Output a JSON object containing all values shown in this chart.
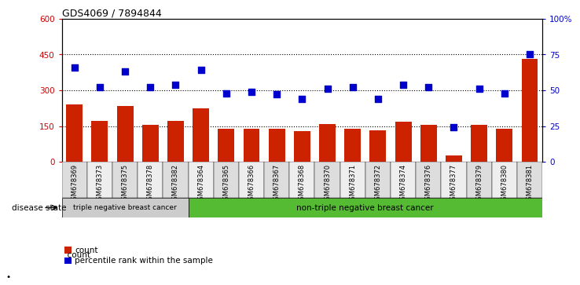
{
  "title": "GDS4069 / 7894844",
  "samples": [
    "GSM678369",
    "GSM678373",
    "GSM678375",
    "GSM678378",
    "GSM678382",
    "GSM678364",
    "GSM678365",
    "GSM678366",
    "GSM678367",
    "GSM678368",
    "GSM678370",
    "GSM678371",
    "GSM678372",
    "GSM678374",
    "GSM678376",
    "GSM678377",
    "GSM678379",
    "GSM678380",
    "GSM678381"
  ],
  "counts": [
    240,
    170,
    235,
    155,
    170,
    225,
    140,
    140,
    138,
    128,
    158,
    138,
    133,
    168,
    155,
    28,
    155,
    138,
    430
  ],
  "percentiles": [
    66,
    52,
    63,
    52,
    54,
    64,
    48,
    49,
    47,
    44,
    51,
    52,
    44,
    54,
    52,
    24,
    51,
    48,
    75
  ],
  "triple_neg_count": 5,
  "non_triple_neg_count": 14,
  "group1_label": "triple negative breast cancer",
  "group2_label": "non-triple negative breast cancer",
  "disease_state_label": "disease state",
  "left_axis_color": "#cc0000",
  "right_axis_color": "#0000cc",
  "bar_color": "#cc2200",
  "dot_color": "#0000cc",
  "ylim_left": [
    0,
    600
  ],
  "ylim_right": [
    0,
    100
  ],
  "left_yticks": [
    0,
    150,
    300,
    450,
    600
  ],
  "right_yticks": [
    0,
    25,
    50,
    75,
    100
  ],
  "right_yticklabels": [
    "0",
    "25",
    "50",
    "75",
    "100%"
  ],
  "grid_lines": [
    150,
    300,
    450
  ],
  "background_color": "#ffffff",
  "group1_bg": "#cccccc",
  "group2_bg": "#55bb33",
  "tick_bg_even": "#dddddd",
  "tick_bg_odd": "#eeeeee"
}
